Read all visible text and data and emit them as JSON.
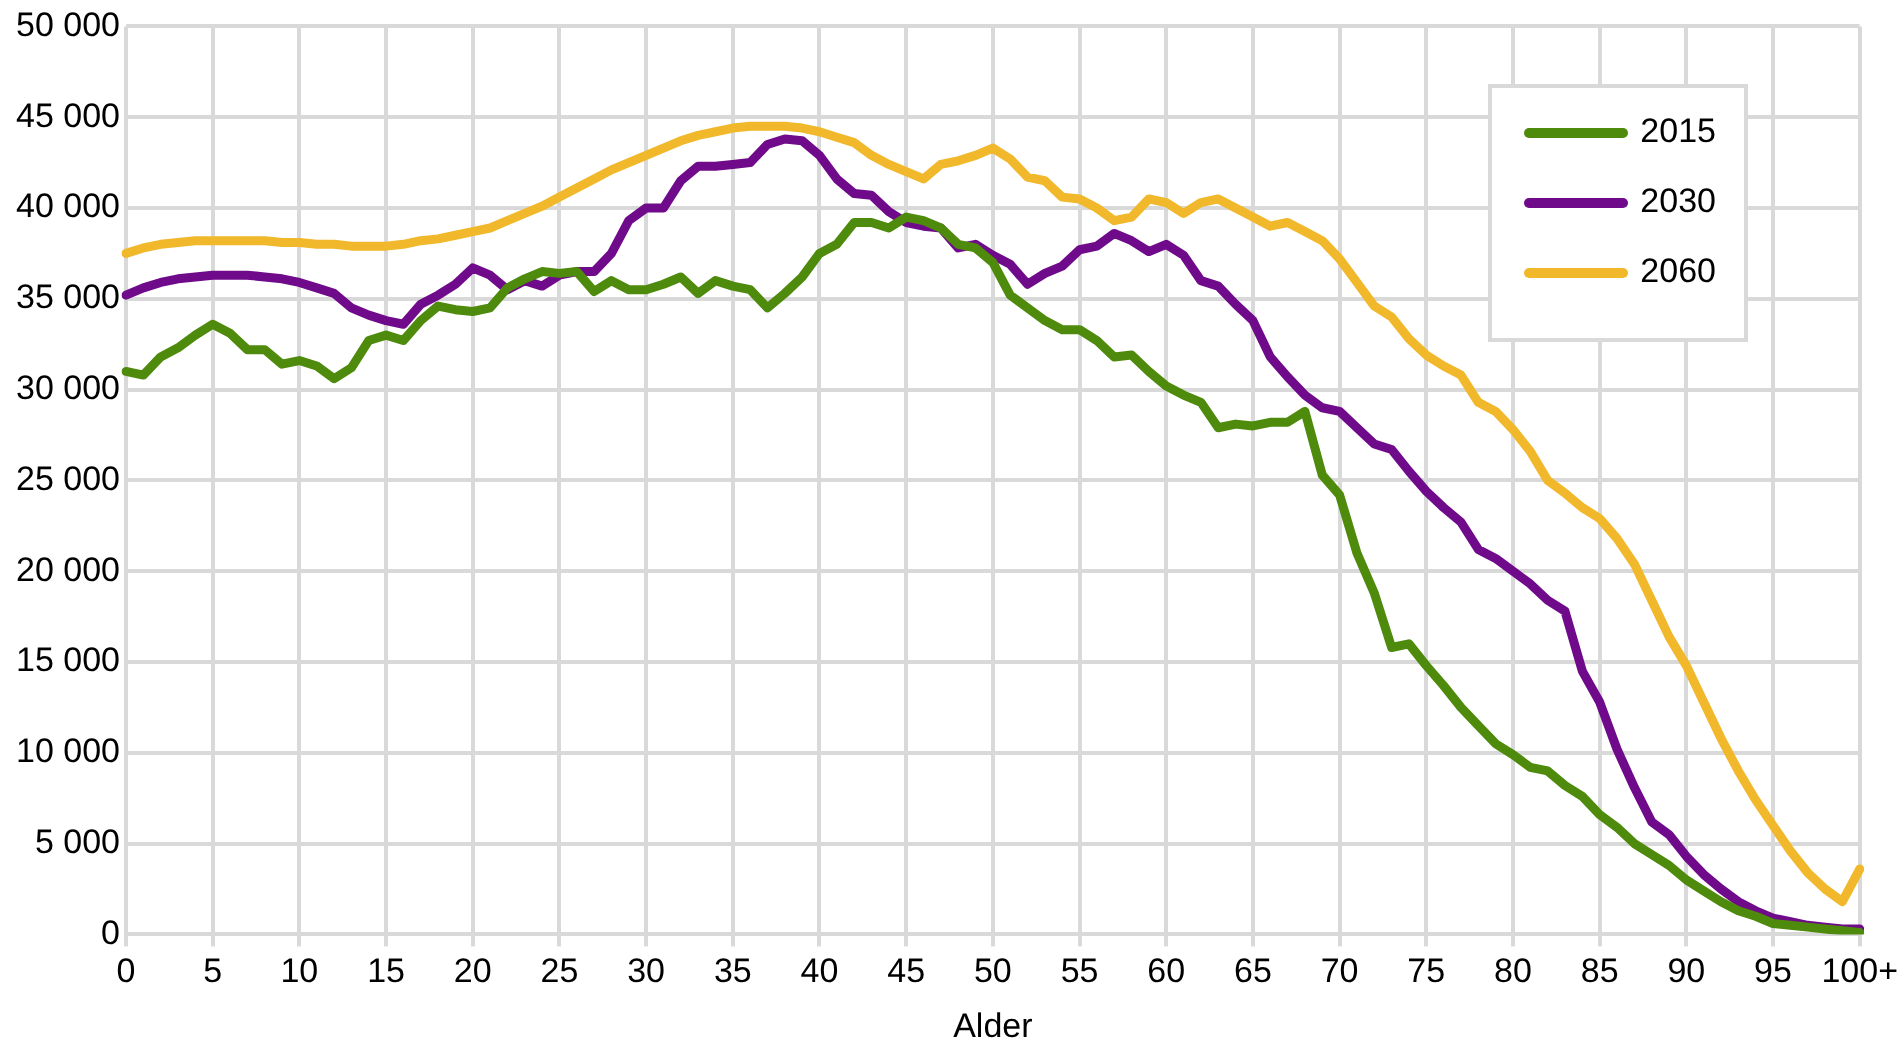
{
  "chart_data": {
    "type": "line",
    "xlabel": "Alder",
    "categories": [
      "0",
      null,
      null,
      null,
      null,
      "5",
      null,
      null,
      null,
      null,
      "10",
      null,
      null,
      null,
      null,
      "15",
      null,
      null,
      null,
      null,
      "20",
      null,
      null,
      null,
      null,
      "25",
      null,
      null,
      null,
      null,
      "30",
      null,
      null,
      null,
      null,
      "35",
      null,
      null,
      null,
      null,
      "40",
      null,
      null,
      null,
      null,
      "45",
      null,
      null,
      null,
      null,
      "50",
      null,
      null,
      null,
      null,
      "55",
      null,
      null,
      null,
      null,
      "60",
      null,
      null,
      null,
      null,
      "65",
      null,
      null,
      null,
      null,
      "70",
      null,
      null,
      null,
      null,
      "75",
      null,
      null,
      null,
      null,
      "80",
      null,
      null,
      null,
      null,
      "85",
      null,
      null,
      null,
      null,
      "90",
      null,
      null,
      null,
      null,
      "95",
      null,
      null,
      null,
      null,
      "100+"
    ],
    "series": [
      {
        "name": "2015",
        "color": "#4e8a0c",
        "values": [
          31000,
          30800,
          31800,
          32300,
          33000,
          33600,
          33100,
          32200,
          32200,
          31400,
          31600,
          31300,
          30600,
          31200,
          32700,
          33000,
          32700,
          33800,
          34600,
          34400,
          34300,
          34500,
          35600,
          36100,
          36500,
          36400,
          36500,
          35400,
          36000,
          35500,
          35500,
          35800,
          36200,
          35300,
          36000,
          35700,
          35500,
          34500,
          35300,
          36200,
          37500,
          38000,
          39200,
          39200,
          38900,
          39500,
          39300,
          38900,
          38000,
          37800,
          37000,
          35200,
          34500,
          33800,
          33300,
          33300,
          32700,
          31800,
          31900,
          31000,
          30200,
          29700,
          29300,
          27900,
          28100,
          28000,
          28200,
          28200,
          28800,
          25300,
          24200,
          21000,
          18800,
          15800,
          16000,
          14800,
          13700,
          12500,
          11500,
          10500,
          9900,
          9200,
          9000,
          8200,
          7600,
          6600,
          5900,
          5000,
          4400,
          3800,
          3000,
          2400,
          1800,
          1300,
          1000,
          600,
          500,
          400,
          300,
          200,
          100
        ]
      },
      {
        "name": "2030",
        "color": "#6f0a8a",
        "values": [
          35200,
          35600,
          35900,
          36100,
          36200,
          36300,
          36300,
          36300,
          36200,
          36100,
          35900,
          35600,
          35300,
          34500,
          34100,
          33800,
          33600,
          34700,
          35200,
          35800,
          36700,
          36300,
          35500,
          36000,
          35700,
          36300,
          36500,
          36500,
          37500,
          39300,
          40000,
          40000,
          41500,
          42300,
          42300,
          42400,
          42500,
          43500,
          43800,
          43700,
          42900,
          41600,
          40800,
          40700,
          39800,
          39200,
          39000,
          38900,
          37800,
          38000,
          37400,
          36900,
          35800,
          36400,
          36800,
          37700,
          37900,
          38600,
          38200,
          37600,
          38000,
          37400,
          36000,
          35700,
          34700,
          33800,
          31800,
          30700,
          29700,
          29000,
          28800,
          27900,
          27000,
          26700,
          25500,
          24400,
          23500,
          22700,
          21200,
          20700,
          20000,
          19300,
          18400,
          17800,
          14500,
          12800,
          10200,
          8100,
          6200,
          5500,
          4300,
          3300,
          2500,
          1800,
          1300,
          900,
          700,
          500,
          400,
          300,
          300
        ]
      },
      {
        "name": "2060",
        "color": "#f0b82a",
        "values": [
          37500,
          37800,
          38000,
          38100,
          38200,
          38200,
          38200,
          38200,
          38200,
          38100,
          38100,
          38000,
          38000,
          37900,
          37900,
          37900,
          38000,
          38200,
          38300,
          38500,
          38700,
          38900,
          39300,
          39700,
          40100,
          40600,
          41100,
          41600,
          42100,
          42500,
          42900,
          43300,
          43700,
          44000,
          44200,
          44400,
          44500,
          44500,
          44500,
          44400,
          44200,
          43900,
          43600,
          42900,
          42400,
          42000,
          41600,
          42400,
          42600,
          42900,
          43300,
          42700,
          41700,
          41500,
          40600,
          40500,
          40000,
          39300,
          39500,
          40500,
          40300,
          39700,
          40300,
          40500,
          40000,
          39500,
          39000,
          39200,
          38700,
          38200,
          37200,
          35900,
          34600,
          34000,
          32800,
          31900,
          31300,
          30800,
          29300,
          28800,
          27800,
          26600,
          25000,
          24300,
          23500,
          22900,
          21800,
          20400,
          18400,
          16400,
          14800,
          12800,
          10800,
          9000,
          7400,
          6000,
          4600,
          3400,
          2500,
          1800,
          3600
        ]
      }
    ],
    "ylim": [
      0,
      50000
    ],
    "yticks": [
      0,
      {
        "value": 5000,
        "label": "5 000"
      },
      {
        "value": 10000,
        "label": "10 000"
      },
      {
        "value": 15000,
        "label": "15 000"
      },
      {
        "value": 20000,
        "label": "20 000"
      },
      {
        "value": 25000,
        "label": "25 000"
      },
      {
        "value": 30000,
        "label": "30 000"
      },
      {
        "value": 35000,
        "label": "35 000"
      },
      {
        "value": 40000,
        "label": "40 000"
      },
      {
        "value": 45000,
        "label": "45 000"
      },
      {
        "value": 50000,
        "label": "50 000"
      }
    ],
    "grid": true,
    "legend": "top right",
    "marker": "none",
    "line_style": "solid"
  }
}
